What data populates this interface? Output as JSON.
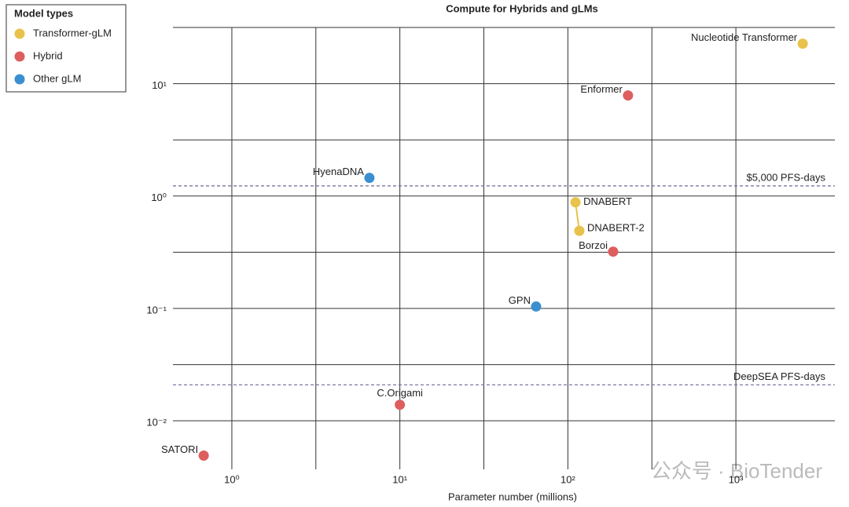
{
  "chart_data": {
    "type": "scatter",
    "title": "Compute for Hybrids and gLMs",
    "x_label": "Parameter number (millions)",
    "legend_title": "Model types",
    "legend": "upper left outside",
    "xscale": "log",
    "yscale": "log",
    "grid": true,
    "xlim": [
      0.446,
      3882
    ],
    "ylim": [
      0.0037,
      31.62
    ],
    "xticks": [
      {
        "value": 1,
        "label": "10⁰"
      },
      {
        "value": 10,
        "label": "10¹"
      },
      {
        "value": 100,
        "label": "10²"
      },
      {
        "value": 1000,
        "label": "10³"
      }
    ],
    "yticks": [
      {
        "value": 0.01,
        "label": "10⁻²"
      },
      {
        "value": 0.1,
        "label": "10⁻¹"
      },
      {
        "value": 1,
        "label": "10⁰"
      },
      {
        "value": 10,
        "label": "10¹"
      }
    ],
    "xgrid_minor": [
      3.162,
      31.62,
      316.2
    ],
    "ygrid_minor": [
      0.03162,
      0.3162,
      3.162,
      31.62
    ],
    "series": [
      {
        "name": "Transformer-gLM",
        "color": "#e8c24a",
        "labels": [
          "Nucleotide Transformer",
          "DNABERT",
          "DNABERT-2"
        ],
        "x": [
          2500,
          111,
          117
        ],
        "values": [
          22.7,
          0.88,
          0.49
        ],
        "connect": [
          1,
          2
        ]
      },
      {
        "name": "Hybrid",
        "color": "#dd5e5e",
        "labels": [
          "Enformer",
          "Borzoi",
          "C.Origami",
          "SATORI"
        ],
        "x": [
          228,
          186,
          10,
          0.68
        ],
        "values": [
          7.85,
          0.32,
          0.0139,
          0.0049
        ]
      },
      {
        "name": "Other gLM",
        "color": "#3b8fd0",
        "labels": [
          "HyenaDNA",
          "GPN"
        ],
        "x": [
          6.59,
          64.7
        ],
        "values": [
          1.45,
          0.104
        ]
      }
    ],
    "reference_lines": [
      {
        "label": "$5,000 PFS-days",
        "value": 1.23,
        "color": "#6a6a9a"
      },
      {
        "label": "DeepSEA PFS-days",
        "value": 0.0209,
        "color": "#6a6a9a"
      }
    ],
    "watermark": "公众号 · BioTender"
  }
}
